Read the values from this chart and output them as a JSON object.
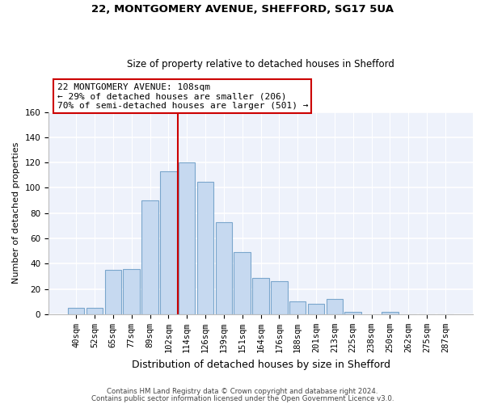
{
  "title1": "22, MONTGOMERY AVENUE, SHEFFORD, SG17 5UA",
  "title2": "Size of property relative to detached houses in Shefford",
  "xlabel": "Distribution of detached houses by size in Shefford",
  "ylabel": "Number of detached properties",
  "bar_labels": [
    "40sqm",
    "52sqm",
    "65sqm",
    "77sqm",
    "89sqm",
    "102sqm",
    "114sqm",
    "126sqm",
    "139sqm",
    "151sqm",
    "164sqm",
    "176sqm",
    "188sqm",
    "201sqm",
    "213sqm",
    "225sqm",
    "238sqm",
    "250sqm",
    "262sqm",
    "275sqm",
    "287sqm"
  ],
  "bar_values": [
    5,
    5,
    35,
    36,
    90,
    113,
    120,
    105,
    73,
    49,
    29,
    26,
    10,
    8,
    12,
    2,
    0,
    2,
    0,
    0,
    0
  ],
  "bar_color": "#c6d9f0",
  "bar_edge_color": "#7aa6cc",
  "marker_line_color": "#cc0000",
  "annotation_box_color": "#ffffff",
  "annotation_border_color": "#cc0000",
  "marker_label": "22 MONTGOMERY AVENUE: 108sqm",
  "annotation_line1": "← 29% of detached houses are smaller (206)",
  "annotation_line2": "70% of semi-detached houses are larger (501) →",
  "ylim": [
    0,
    160
  ],
  "yticks": [
    0,
    20,
    40,
    60,
    80,
    100,
    120,
    140,
    160
  ],
  "footer1": "Contains HM Land Registry data © Crown copyright and database right 2024.",
  "footer2": "Contains public sector information licensed under the Open Government Licence v3.0.",
  "bg_color": "#ffffff",
  "plot_bg_color": "#eef2fb",
  "grid_color": "#ffffff",
  "title1_fontsize": 9.5,
  "title2_fontsize": 8.5,
  "xlabel_fontsize": 9,
  "ylabel_fontsize": 8,
  "tick_fontsize": 7.5,
  "footer_fontsize": 6.2,
  "annot_fontsize": 8.0
}
